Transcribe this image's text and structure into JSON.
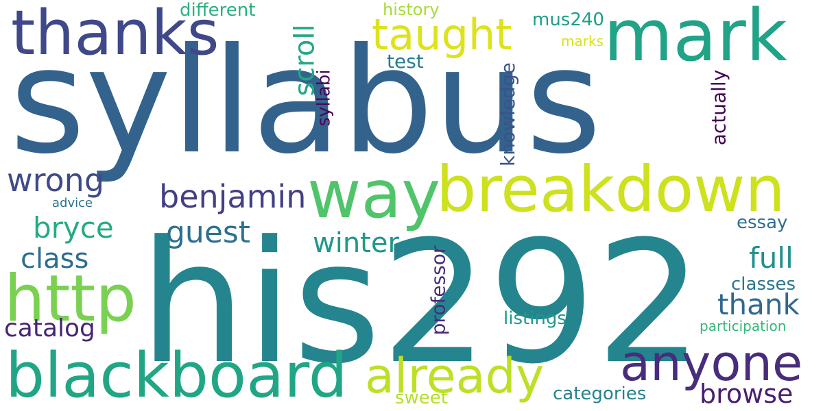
{
  "words": [
    {
      "text": "syllabus",
      "color": "#33638d"
    },
    {
      "text": "his292",
      "color": "#25858e"
    },
    {
      "text": "thanks",
      "color": "#3f4889"
    },
    {
      "text": "mark",
      "color": "#20a386"
    },
    {
      "text": "breakdown",
      "color": "#cde11d"
    },
    {
      "text": "way",
      "color": "#50c46a"
    },
    {
      "text": "blackboard",
      "color": "#21a685"
    },
    {
      "text": "http",
      "color": "#7ad151"
    },
    {
      "text": "anyone",
      "color": "#472d7b"
    },
    {
      "text": "already",
      "color": "#bddf26"
    },
    {
      "text": "taught",
      "color": "#dde318"
    },
    {
      "text": "wrong",
      "color": "#3e4a89"
    },
    {
      "text": "benjamin",
      "color": "#423f85"
    },
    {
      "text": "guest",
      "color": "#2c718e"
    },
    {
      "text": "bryce",
      "color": "#25ab82"
    },
    {
      "text": "class",
      "color": "#2e6d8e"
    },
    {
      "text": "winter",
      "color": "#1f978b"
    },
    {
      "text": "full",
      "color": "#21908d"
    },
    {
      "text": "thank",
      "color": "#31688e"
    },
    {
      "text": "catalog",
      "color": "#482475"
    },
    {
      "text": "browse",
      "color": "#481f70"
    },
    {
      "text": "scroll",
      "color": "#22a884"
    },
    {
      "text": "professor",
      "color": "#472c7a"
    },
    {
      "text": "knowledge",
      "color": "#3b528b"
    },
    {
      "text": "syllabi",
      "color": "#46075a"
    },
    {
      "text": "actually",
      "color": "#440154"
    },
    {
      "text": "different",
      "color": "#2ab07f"
    },
    {
      "text": "history",
      "color": "#a8db34"
    },
    {
      "text": "mus240",
      "color": "#1f9e89"
    },
    {
      "text": "marks",
      "color": "#d8e219"
    },
    {
      "text": "test",
      "color": "#287c8e"
    },
    {
      "text": "essay",
      "color": "#2d708e"
    },
    {
      "text": "classes",
      "color": "#2a768e"
    },
    {
      "text": "listings",
      "color": "#1f988b"
    },
    {
      "text": "participation",
      "color": "#35b779"
    },
    {
      "text": "sweet",
      "color": "#b5de2b"
    },
    {
      "text": "categories",
      "color": "#26828e"
    },
    {
      "text": "advice",
      "color": "#2c728e"
    }
  ]
}
